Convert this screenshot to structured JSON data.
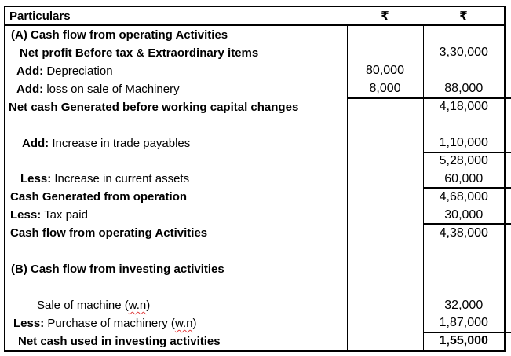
{
  "table": {
    "header": {
      "particulars": "Particulars",
      "col1": "₹",
      "col2": "₹"
    },
    "rows": [
      {
        "indent": 3,
        "runs": [
          {
            "text": "(A) Cash flow from operating Activities",
            "bold": true
          }
        ],
        "col1": "",
        "col2": ""
      },
      {
        "indent": 14,
        "runs": [
          {
            "text": "Net profit Before tax & Extraordinary items",
            "bold": true
          }
        ],
        "col1": "",
        "col2": "3,30,000"
      },
      {
        "indent": 10,
        "runs": [
          {
            "text": "Add:",
            "bold": true
          },
          {
            "text": " Depreciation"
          }
        ],
        "col1": "80,000",
        "col2": ""
      },
      {
        "indent": 10,
        "runs": [
          {
            "text": "Add:",
            "bold": true
          },
          {
            "text": " loss on sale of Machinery"
          }
        ],
        "col1": "8,000",
        "col2": "88,000",
        "ul1": true,
        "ul2": true
      },
      {
        "indent": 0,
        "runs": [
          {
            "text": "Net cash Generated before working capital changes",
            "bold": true
          }
        ],
        "col1": "",
        "col2": "4,18,000"
      },
      {
        "indent": 0,
        "runs": [],
        "col1": "",
        "col2": ""
      },
      {
        "indent": 17,
        "runs": [
          {
            "text": "Add:",
            "bold": true
          },
          {
            "text": " Increase in trade payables"
          }
        ],
        "col1": "",
        "col2": "1,10,000",
        "ul2": true
      },
      {
        "indent": 0,
        "runs": [],
        "col1": "",
        "col2": "5,28,000"
      },
      {
        "indent": 15,
        "runs": [
          {
            "text": "Less:",
            "bold": true
          },
          {
            "text": " Increase in current assets"
          }
        ],
        "col1": "",
        "col2": "60,000",
        "ul2": true
      },
      {
        "indent": 2,
        "runs": [
          {
            "text": "Cash Generated from operation",
            "bold": true
          }
        ],
        "col1": "",
        "col2": "4,68,000"
      },
      {
        "indent": 2,
        "runs": [
          {
            "text": "Less:",
            "bold": true
          },
          {
            "text": " Tax paid"
          }
        ],
        "col1": "",
        "col2": "30,000",
        "ul2": true
      },
      {
        "indent": 2,
        "runs": [
          {
            "text": "Cash flow from operating Activities",
            "bold": true
          }
        ],
        "col1": "",
        "col2": "4,38,000"
      },
      {
        "indent": 0,
        "runs": [],
        "col1": "",
        "col2": ""
      },
      {
        "indent": 3,
        "runs": [
          {
            "text": "(B) Cash flow from investing activities",
            "bold": true
          }
        ],
        "col1": "",
        "col2": ""
      },
      {
        "indent": 0,
        "runs": [],
        "col1": "",
        "col2": ""
      },
      {
        "indent": 36,
        "runs": [
          {
            "text": "Sale of machine ("
          },
          {
            "text": "w.n",
            "wavy": true
          },
          {
            "text": ")"
          }
        ],
        "col1": "",
        "col2": "32,000"
      },
      {
        "indent": 6,
        "runs": [
          {
            "text": "Less:",
            "bold": true
          },
          {
            "text": " Purchase of machinery ("
          },
          {
            "text": "w.n",
            "wavy": true
          },
          {
            "text": ")"
          }
        ],
        "col1": "",
        "col2": "1,87,000",
        "ul2": true
      },
      {
        "indent": 12,
        "runs": [
          {
            "text": "Net cash used in investing activities",
            "bold": true
          }
        ],
        "col1": "",
        "col2": "1,55,000",
        "col2_bold": true
      }
    ]
  },
  "colors": {
    "border": "#000000",
    "text": "#000000",
    "background": "#ffffff",
    "spellcheck": "#e03a3a"
  }
}
